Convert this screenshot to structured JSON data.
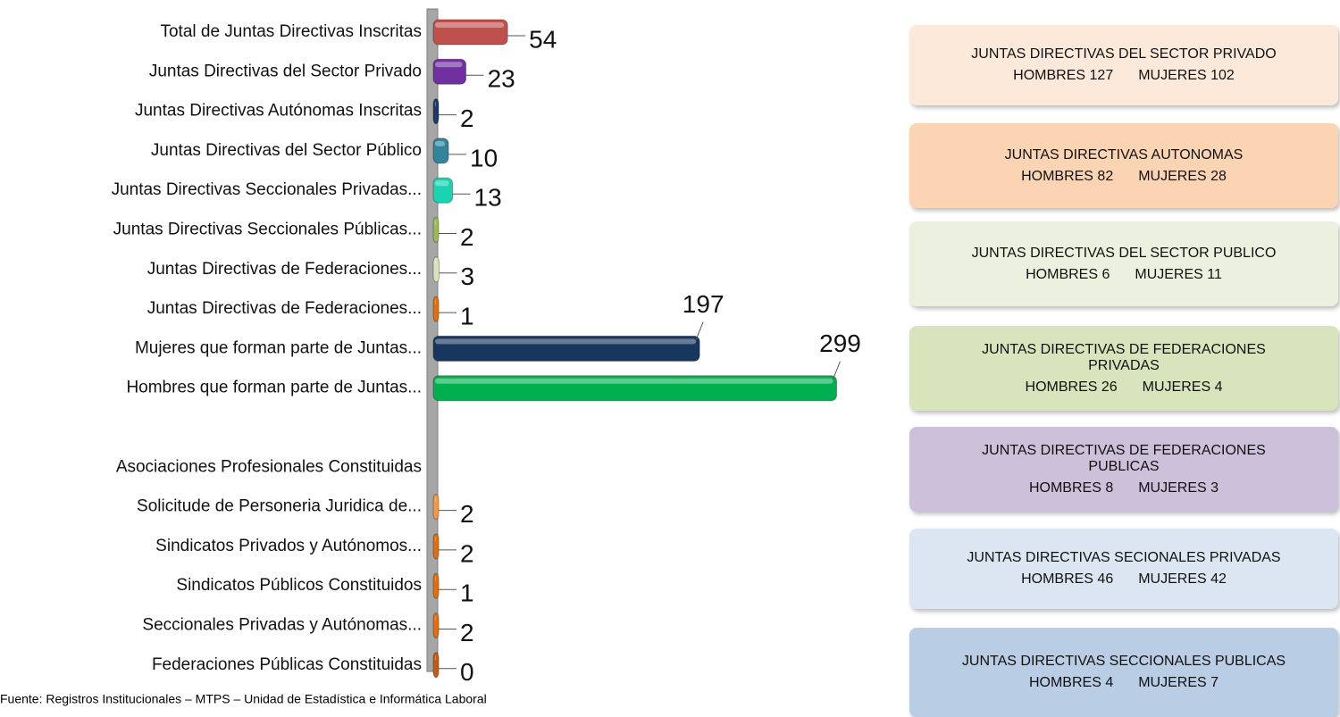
{
  "chart_data": {
    "type": "bar",
    "orientation": "horizontal",
    "categories": [
      "Total de Juntas Directivas Inscritas",
      "Juntas Directivas del Sector Privado",
      "Juntas Directivas Autónomas Inscritas",
      "Juntas Directivas del Sector Público",
      "Juntas Directivas Seccionales Privadas...",
      "Juntas Directivas Seccionales Públicas...",
      "Juntas Directivas de Federaciones...",
      "Juntas Directivas de Federaciones...",
      "Mujeres que forman parte de Juntas...",
      "Hombres que forman parte de Juntas...",
      null,
      "Asociaciones Profesionales Constituidas",
      "Solicitude de Personeria Juridica de...",
      "Sindicatos Privados y Autónomos...",
      "Sindicatos Públicos Constituidos",
      "Seccionales Privadas y Autónomas...",
      "Federaciones Públicas Constituidas"
    ],
    "values": [
      54,
      23,
      2,
      10,
      13,
      2,
      3,
      1,
      197,
      299,
      null,
      null,
      2,
      2,
      1,
      2,
      0
    ],
    "colors": [
      "#c0504d",
      "#7030a0",
      "#1f3864",
      "#31849b",
      "#1ad3b0",
      "#9bbb59",
      "#d7e4bd",
      "#e46c0a",
      "#17375e",
      "#00b050",
      null,
      null,
      "#f79646",
      "#e46c0a",
      "#e46c0a",
      "#e46c0a",
      "#c55a11"
    ],
    "xlim": [
      0,
      300
    ],
    "source": "Fuente: Registros Institucionales – MTPS – Unidad de Estadística e Informática Laboral"
  },
  "panels": [
    {
      "title": "JUNTAS DIRECTIVAS DEL SECTOR PRIVADO",
      "men": "HOMBRES  127",
      "women": "MUJERES 102",
      "color": "#fde9d9"
    },
    {
      "title": "JUNTAS DIRECTIVAS   AUTONOMAS",
      "men": "HOMBRES  82",
      "women": "MUJERES  28",
      "color": "#fbd4b4"
    },
    {
      "title": "JUNTAS DIRECTIVAS DEL SECTOR PUBLICO",
      "men": "HOMBRES  6",
      "women": "MUJERES  11",
      "color": "#ebf1de"
    },
    {
      "title": "JUNTAS DIRECTIVAS DE FEDERACIONES PRIVADAS",
      "men": "HOMBRES  26",
      "women": "MUJERES  4",
      "color": "#d7e4bc"
    },
    {
      "title": "JUNTAS DIRECTIVAS DE FEDERACIONES PUBLICAS",
      "men": "HOMBRES  8",
      "women": "MUJERES  3",
      "color": "#ccc0da"
    },
    {
      "title": "JUNTAS DIRECTIVAS SECIONALES PRIVADAS",
      "men": "HOMBRES  46",
      "women": "MUJERES  42",
      "color": "#dce6f2"
    },
    {
      "title": "JUNTAS DIRECTIVAS SECCIONALES PUBLICAS",
      "men": "HOMBRES  4",
      "women": "MUJERES  7",
      "color": "#b9cde5"
    }
  ]
}
